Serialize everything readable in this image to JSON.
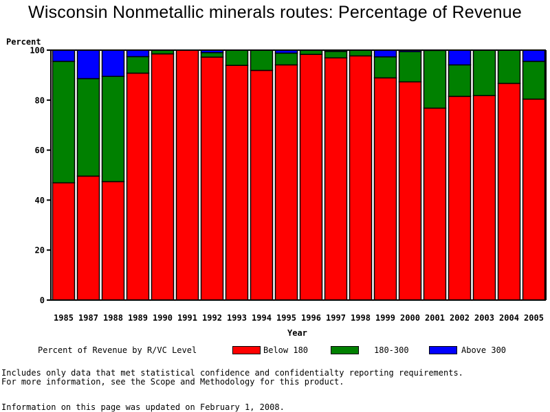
{
  "chart_data": {
    "type": "bar",
    "stacked": true,
    "title": "Wisconsin Nonmetallic minerals routes: Percentage of Revenue",
    "xlabel": "Year",
    "ylabel": "Percent",
    "ylim": [
      0,
      100
    ],
    "yticks": [
      0,
      20,
      40,
      60,
      80,
      100
    ],
    "grid": false,
    "categories": [
      "1985",
      "1987",
      "1988",
      "1989",
      "1990",
      "1991",
      "1992",
      "1993",
      "1994",
      "1995",
      "1996",
      "1997",
      "1998",
      "1999",
      "2000",
      "2001",
      "2002",
      "2003",
      "2004",
      "2005"
    ],
    "series": [
      {
        "name": "Below 180",
        "color": "#ff0000",
        "values": [
          46.9,
          49.6,
          47.4,
          90.8,
          98.5,
          100.0,
          97.2,
          93.9,
          91.9,
          94.1,
          98.3,
          96.9,
          97.7,
          88.9,
          87.3,
          76.8,
          81.5,
          81.8,
          86.7,
          80.4
        ]
      },
      {
        "name": "180-300",
        "color": "#008000",
        "values": [
          48.6,
          39.0,
          42.1,
          6.6,
          1.5,
          0.0,
          1.8,
          6.1,
          8.1,
          4.7,
          1.7,
          2.6,
          2.3,
          8.4,
          12.1,
          23.1,
          12.6,
          18.2,
          13.3,
          15.1
        ]
      },
      {
        "name": "Above 300",
        "color": "#0000ff",
        "values": [
          4.5,
          11.4,
          10.5,
          2.6,
          0.0,
          0.0,
          1.0,
          0.0,
          0.0,
          1.2,
          0.0,
          0.5,
          0.0,
          2.7,
          0.6,
          0.1,
          5.9,
          0.0,
          0.0,
          4.5
        ]
      }
    ],
    "legend": {
      "title": "Percent of Revenue by R/VC Level",
      "placement": "bottom",
      "entries": [
        "Below 180",
        "180-300",
        "Above 300"
      ]
    }
  },
  "footnotes": {
    "line1": "Includes only data that met statistical confidence and confidentialty reporting requirements.",
    "line2": "For more information, see the Scope and Methodology for this product.",
    "updated": "Information on this page was updated on February 1, 2008."
  }
}
